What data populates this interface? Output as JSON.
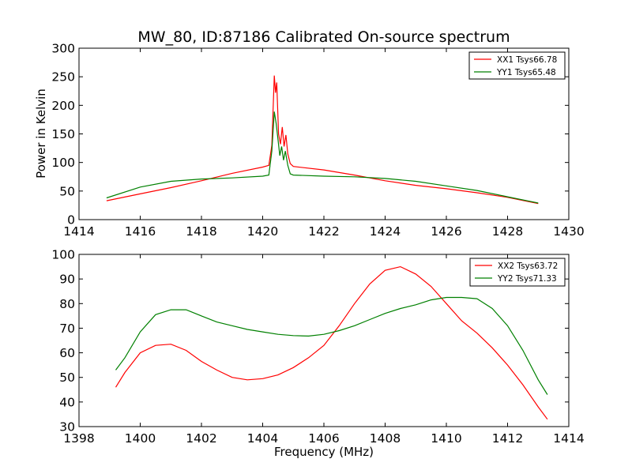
{
  "figure": {
    "title": "MW_80, ID:87186 Calibrated On-source spectrum"
  },
  "chart_data": [
    {
      "type": "line",
      "title": "MW_80, ID:87186 Calibrated On-source spectrum",
      "xlabel": "",
      "ylabel": "Power in Kelvin",
      "xlim": [
        1414,
        1430
      ],
      "ylim": [
        0,
        300
      ],
      "xticks": [
        1414,
        1416,
        1418,
        1420,
        1422,
        1424,
        1426,
        1428,
        1430
      ],
      "yticks": [
        0,
        50,
        100,
        150,
        200,
        250,
        300
      ],
      "grid": false,
      "legend_position": "top-right",
      "series": [
        {
          "name": "XX1 Tsys66.78",
          "color": "#ff0000",
          "points": [
            [
              1414.9,
              33
            ],
            [
              1416.0,
              45
            ],
            [
              1417.0,
              56
            ],
            [
              1418.0,
              68
            ],
            [
              1419.0,
              81
            ],
            [
              1420.0,
              92
            ],
            [
              1420.2,
              95
            ],
            [
              1420.3,
              130
            ],
            [
              1420.38,
              252
            ],
            [
              1420.42,
              222
            ],
            [
              1420.46,
              240
            ],
            [
              1420.52,
              150
            ],
            [
              1420.58,
              132
            ],
            [
              1420.64,
              162
            ],
            [
              1420.7,
              128
            ],
            [
              1420.76,
              148
            ],
            [
              1420.82,
              115
            ],
            [
              1420.9,
              98
            ],
            [
              1421.0,
              93
            ],
            [
              1422.0,
              87
            ],
            [
              1423.0,
              78
            ],
            [
              1424.0,
              68
            ],
            [
              1425.0,
              60
            ],
            [
              1426.0,
              54
            ],
            [
              1427.0,
              47
            ],
            [
              1428.0,
              39
            ],
            [
              1429.0,
              28
            ]
          ]
        },
        {
          "name": "YY1 Tsys65.48",
          "color": "#008000",
          "points": [
            [
              1414.9,
              38
            ],
            [
              1416.0,
              57
            ],
            [
              1417.0,
              67
            ],
            [
              1418.0,
              71
            ],
            [
              1419.0,
              73
            ],
            [
              1420.0,
              76
            ],
            [
              1420.2,
              78
            ],
            [
              1420.3,
              120
            ],
            [
              1420.38,
              189
            ],
            [
              1420.44,
              168
            ],
            [
              1420.5,
              140
            ],
            [
              1420.56,
              112
            ],
            [
              1420.62,
              128
            ],
            [
              1420.68,
              104
            ],
            [
              1420.74,
              120
            ],
            [
              1420.82,
              95
            ],
            [
              1420.9,
              80
            ],
            [
              1421.0,
              78
            ],
            [
              1422.0,
              76
            ],
            [
              1423.0,
              75
            ],
            [
              1424.0,
              72
            ],
            [
              1425.0,
              67
            ],
            [
              1426.0,
              59
            ],
            [
              1427.0,
              51
            ],
            [
              1428.0,
              40
            ],
            [
              1429.0,
              29
            ]
          ]
        }
      ]
    },
    {
      "type": "line",
      "title": "",
      "xlabel": "Frequency (MHz)",
      "ylabel": "",
      "xlim": [
        1398,
        1414
      ],
      "ylim": [
        30,
        100
      ],
      "xticks": [
        1398,
        1400,
        1402,
        1404,
        1406,
        1408,
        1410,
        1412,
        1414
      ],
      "yticks": [
        30,
        40,
        50,
        60,
        70,
        80,
        90,
        100
      ],
      "grid": false,
      "legend_position": "top-right",
      "series": [
        {
          "name": "XX2 Tsys63.72",
          "color": "#ff0000",
          "points": [
            [
              1399.2,
              46
            ],
            [
              1399.5,
              52
            ],
            [
              1400.0,
              60
            ],
            [
              1400.5,
              63
            ],
            [
              1401.0,
              63.5
            ],
            [
              1401.5,
              61
            ],
            [
              1402.0,
              56.5
            ],
            [
              1402.5,
              53
            ],
            [
              1403.0,
              50
            ],
            [
              1403.5,
              49
            ],
            [
              1404.0,
              49.5
            ],
            [
              1404.5,
              51
            ],
            [
              1405.0,
              54
            ],
            [
              1405.5,
              58
            ],
            [
              1406.0,
              63
            ],
            [
              1406.5,
              71
            ],
            [
              1407.0,
              80
            ],
            [
              1407.5,
              88
            ],
            [
              1408.0,
              93.5
            ],
            [
              1408.5,
              95
            ],
            [
              1409.0,
              92
            ],
            [
              1409.5,
              87
            ],
            [
              1410.0,
              80
            ],
            [
              1410.5,
              73
            ],
            [
              1411.0,
              68
            ],
            [
              1411.5,
              62
            ],
            [
              1412.0,
              55
            ],
            [
              1412.5,
              47
            ],
            [
              1413.0,
              38
            ],
            [
              1413.3,
              33
            ]
          ]
        },
        {
          "name": "YY2 Tsys71.33",
          "color": "#008000",
          "points": [
            [
              1399.2,
              53
            ],
            [
              1399.5,
              58
            ],
            [
              1400.0,
              68.5
            ],
            [
              1400.5,
              75.5
            ],
            [
              1401.0,
              77.5
            ],
            [
              1401.5,
              77.5
            ],
            [
              1402.0,
              75
            ],
            [
              1402.5,
              72.5
            ],
            [
              1403.0,
              71
            ],
            [
              1403.5,
              69.5
            ],
            [
              1404.0,
              68.5
            ],
            [
              1404.5,
              67.5
            ],
            [
              1405.0,
              67
            ],
            [
              1405.5,
              66.8
            ],
            [
              1406.0,
              67.5
            ],
            [
              1406.5,
              69
            ],
            [
              1407.0,
              71
            ],
            [
              1407.5,
              73.5
            ],
            [
              1408.0,
              76
            ],
            [
              1408.5,
              78
            ],
            [
              1409.0,
              79.5
            ],
            [
              1409.5,
              81.5
            ],
            [
              1410.0,
              82.5
            ],
            [
              1410.5,
              82.5
            ],
            [
              1411.0,
              82
            ],
            [
              1411.5,
              78
            ],
            [
              1412.0,
              71
            ],
            [
              1412.5,
              61
            ],
            [
              1413.0,
              49
            ],
            [
              1413.3,
              43
            ]
          ]
        }
      ]
    }
  ]
}
